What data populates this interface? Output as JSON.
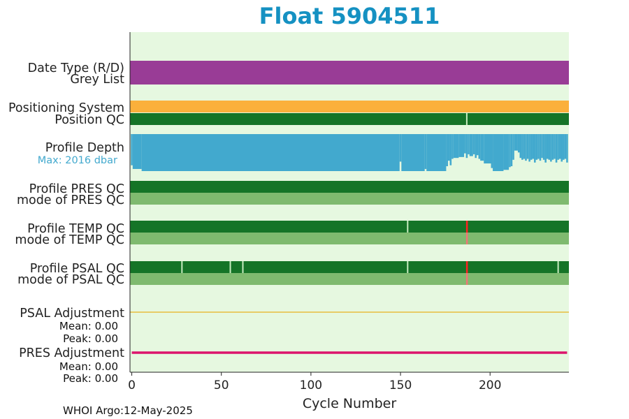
{
  "chart_data": {
    "type": "bar",
    "title": "Float 5904511",
    "xlabel": "Cycle Number",
    "xlim": [
      -1,
      244
    ],
    "x_ticks": [
      0,
      50,
      100,
      150,
      200
    ],
    "grid": false,
    "colors": {
      "title": "#1591c2",
      "background": "#e6f8e0",
      "data_type": "#993c96",
      "positioning": "#fbb03b",
      "qc_good": "#157427",
      "mode_good": "#7fba6f",
      "depth": "#42a9ce",
      "bad_red": "#ff2222",
      "mode_red": "#ee7777",
      "gap": "#c8ecc0",
      "psal_adjust": "#e8b21e",
      "pres_adjust": "#dc146c"
    },
    "rows": [
      {
        "label": "Date Type (R/D)",
        "color": "#993c96"
      },
      {
        "label": "Grey List"
      },
      {
        "label": "Positioning System",
        "color": "#fbb03b"
      },
      {
        "label": "Position QC",
        "color": "#157427",
        "gap_cycles": [
          187
        ]
      },
      {
        "label": "Profile Depth",
        "max_label": "Max: 2016 dbar"
      },
      {
        "label": "Profile PRES QC",
        "color": "#157427"
      },
      {
        "label": "mode of PRES QC",
        "color": "#7fba6f"
      },
      {
        "label": "Profile TEMP QC",
        "color": "#157427",
        "gap_cycles": [
          154
        ],
        "bad_cycles": [
          187
        ]
      },
      {
        "label": "mode of TEMP QC",
        "color": "#7fba6f",
        "bad_cycles": [
          187
        ]
      },
      {
        "label": "Profile PSAL QC",
        "color": "#157427",
        "gap_cycles": [
          28,
          55,
          62,
          154,
          238
        ],
        "bad_cycles": [
          187
        ]
      },
      {
        "label": "mode of PSAL QC",
        "color": "#7fba6f",
        "bad_cycles": [
          187
        ]
      }
    ],
    "psal_adjustment": {
      "label": "PSAL Adjustment",
      "mean": "Mean: 0.00",
      "peak": "Peak: 0.00"
    },
    "pres_adjustment": {
      "label": "PRES Adjustment",
      "mean": "Mean: 0.00",
      "peak": "Peak: 0.00"
    },
    "profile_depth": {
      "max_dbar": 2016,
      "segments": [
        {
          "from": 0,
          "to": 0,
          "depth": 1700
        },
        {
          "from": 1,
          "to": 5,
          "depth": 1900
        },
        {
          "from": 6,
          "to": 149,
          "depth": 2016
        },
        {
          "from": 150,
          "to": 150,
          "depth": 1500
        },
        {
          "from": 151,
          "to": 163,
          "depth": 2016
        },
        {
          "from": 164,
          "to": 164,
          "depth": 1900
        },
        {
          "from": 165,
          "to": 175,
          "depth": 2016
        },
        {
          "from": 176,
          "to": 176,
          "depth": 1750
        },
        {
          "from": 177,
          "to": 177,
          "depth": 1450
        },
        {
          "from": 178,
          "to": 178,
          "depth": 1700
        },
        {
          "from": 179,
          "to": 179,
          "depth": 1350
        },
        {
          "from": 180,
          "to": 182,
          "depth": 1300
        },
        {
          "from": 183,
          "to": 185,
          "depth": 1250
        },
        {
          "from": 186,
          "to": 186,
          "depth": 1050
        },
        {
          "from": 187,
          "to": 187,
          "depth": 1300
        },
        {
          "from": 188,
          "to": 188,
          "depth": 1100
        },
        {
          "from": 189,
          "to": 190,
          "depth": 1200
        },
        {
          "from": 191,
          "to": 191,
          "depth": 1100
        },
        {
          "from": 192,
          "to": 192,
          "depth": 1300
        },
        {
          "from": 193,
          "to": 193,
          "depth": 1150
        },
        {
          "from": 194,
          "to": 194,
          "depth": 1350
        },
        {
          "from": 195,
          "to": 196,
          "depth": 1450
        },
        {
          "from": 197,
          "to": 200,
          "depth": 1600
        },
        {
          "from": 201,
          "to": 201,
          "depth": 1850
        },
        {
          "from": 202,
          "to": 207,
          "depth": 2016
        },
        {
          "from": 208,
          "to": 210,
          "depth": 1950
        },
        {
          "from": 211,
          "to": 211,
          "depth": 1800
        },
        {
          "from": 212,
          "to": 212,
          "depth": 1750
        },
        {
          "from": 213,
          "to": 213,
          "depth": 1400
        },
        {
          "from": 214,
          "to": 215,
          "depth": 900
        },
        {
          "from": 216,
          "to": 216,
          "depth": 1000
        },
        {
          "from": 217,
          "to": 217,
          "depth": 1300
        },
        {
          "from": 218,
          "to": 218,
          "depth": 1400
        },
        {
          "from": 219,
          "to": 219,
          "depth": 1350
        },
        {
          "from": 220,
          "to": 220,
          "depth": 1450
        },
        {
          "from": 221,
          "to": 221,
          "depth": 1350
        },
        {
          "from": 222,
          "to": 222,
          "depth": 1500
        },
        {
          "from": 223,
          "to": 223,
          "depth": 1400
        },
        {
          "from": 224,
          "to": 224,
          "depth": 1350
        },
        {
          "from": 225,
          "to": 225,
          "depth": 1550
        },
        {
          "from": 226,
          "to": 226,
          "depth": 1400
        },
        {
          "from": 227,
          "to": 227,
          "depth": 1350
        },
        {
          "from": 228,
          "to": 228,
          "depth": 1450
        },
        {
          "from": 229,
          "to": 229,
          "depth": 1300
        },
        {
          "from": 230,
          "to": 230,
          "depth": 1400
        },
        {
          "from": 231,
          "to": 231,
          "depth": 1550
        },
        {
          "from": 232,
          "to": 232,
          "depth": 1350
        },
        {
          "from": 233,
          "to": 233,
          "depth": 1400
        },
        {
          "from": 234,
          "to": 234,
          "depth": 1500
        },
        {
          "from": 235,
          "to": 235,
          "depth": 1400
        },
        {
          "from": 236,
          "to": 236,
          "depth": 1350
        },
        {
          "from": 237,
          "to": 237,
          "depth": 1550
        },
        {
          "from": 238,
          "to": 238,
          "depth": 1400
        },
        {
          "from": 239,
          "to": 239,
          "depth": 1350
        },
        {
          "from": 240,
          "to": 240,
          "depth": 1500
        },
        {
          "from": 241,
          "to": 241,
          "depth": 1400
        },
        {
          "from": 242,
          "to": 242,
          "depth": 1350
        },
        {
          "from": 243,
          "to": 243,
          "depth": 1550
        }
      ]
    },
    "footer": "WHOI Argo:12-May-2025"
  }
}
